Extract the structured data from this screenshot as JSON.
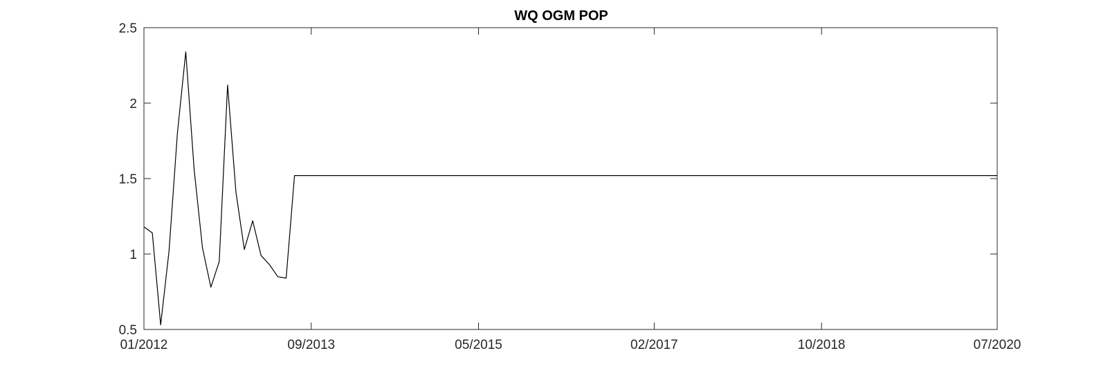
{
  "chart_data": {
    "type": "line",
    "title": "WQ OGM POP",
    "xlabel": "",
    "ylabel": "",
    "xlim": [
      "2012-01",
      "2020-07"
    ],
    "ylim": [
      0.5,
      2.5
    ],
    "x_ticks": [
      {
        "date": "2012-01",
        "label": "01/2012"
      },
      {
        "date": "2013-09",
        "label": "09/2013"
      },
      {
        "date": "2015-05",
        "label": "05/2015"
      },
      {
        "date": "2017-02",
        "label": "02/2017"
      },
      {
        "date": "2018-10",
        "label": "10/2018"
      },
      {
        "date": "2020-07",
        "label": "07/2020"
      }
    ],
    "y_ticks": [
      {
        "value": 0.5,
        "label": "0.5"
      },
      {
        "value": 1,
        "label": "1"
      },
      {
        "value": 1.5,
        "label": "1.5"
      },
      {
        "value": 2,
        "label": "2"
      },
      {
        "value": 2.5,
        "label": "2.5"
      }
    ],
    "grid": false,
    "legend": "none",
    "line_color": "#000000",
    "axis_color": "#262626",
    "series": [
      {
        "x": [
          "2012-01",
          "2012-02",
          "2012-03",
          "2012-04",
          "2012-05",
          "2012-06",
          "2012-07",
          "2012-08",
          "2012-09",
          "2012-10",
          "2012-11",
          "2012-12",
          "2013-01",
          "2013-02",
          "2013-03",
          "2013-04",
          "2013-05",
          "2013-06",
          "2013-07",
          "2013-08",
          "2020-07"
        ],
        "values": [
          1.18,
          1.14,
          0.53,
          1.02,
          1.8,
          2.34,
          1.56,
          1.04,
          0.78,
          0.95,
          2.12,
          1.41,
          1.03,
          1.22,
          0.99,
          0.93,
          0.85,
          0.84,
          1.52,
          1.52,
          1.52
        ]
      }
    ]
  }
}
